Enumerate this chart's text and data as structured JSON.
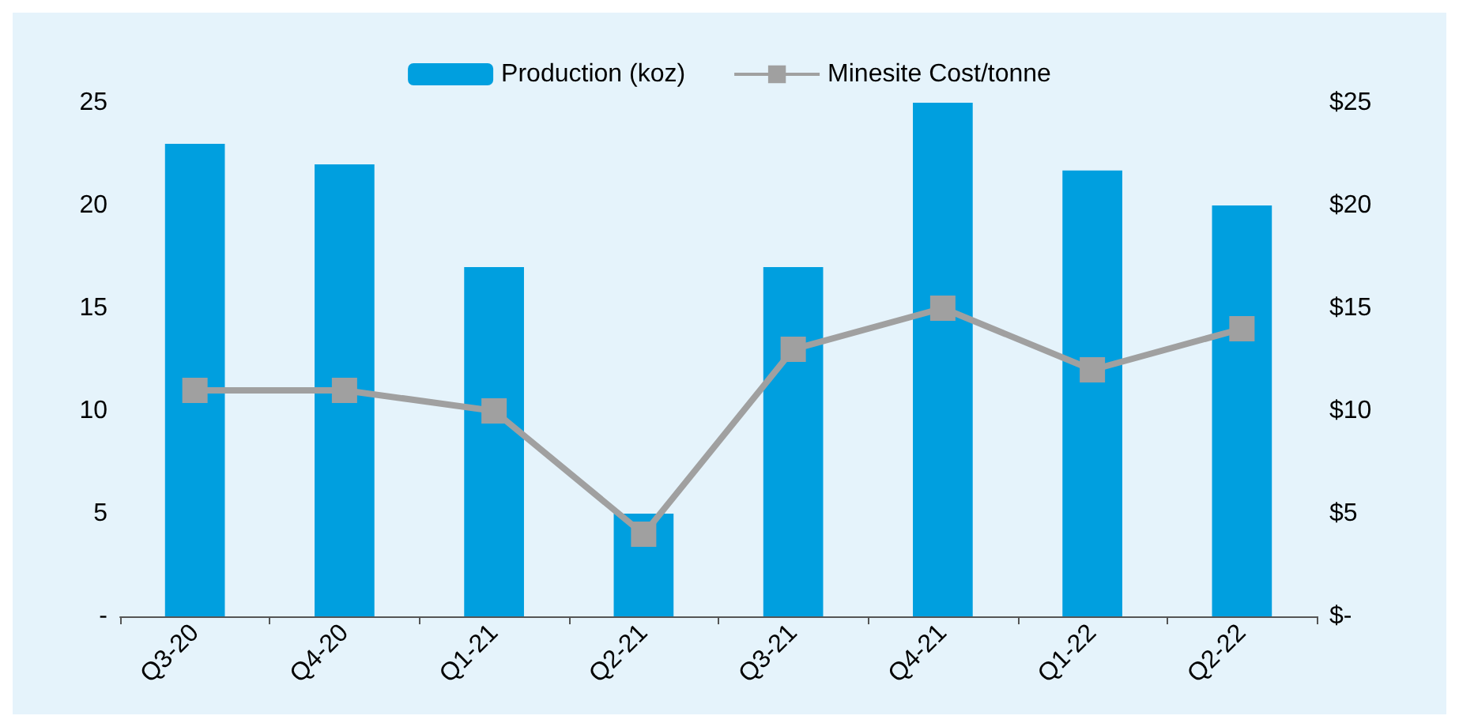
{
  "chart_data": {
    "type": "bar",
    "categories": [
      "Q3-20",
      "Q4-20",
      "Q1-21",
      "Q2-21",
      "Q3-21",
      "Q4-21",
      "Q1-22",
      "Q2-22"
    ],
    "series": [
      {
        "name": "Production (koz)",
        "color": "#009fdf",
        "values": [
          23,
          22,
          17,
          5,
          17,
          25,
          21.7,
          20
        ]
      },
      {
        "name": "Minesite Cost/tonne",
        "type": "line",
        "axis": "y2",
        "color": "#a0a0a0",
        "marker": "square",
        "values": [
          11,
          11,
          10,
          4,
          13,
          15,
          12,
          14
        ]
      }
    ],
    "ylim": [
      0,
      25
    ],
    "yticks": [
      {
        "value": 0,
        "label": "-"
      },
      5,
      10,
      15,
      20,
      25
    ],
    "y2lim": [
      0,
      25
    ],
    "y2ticks": [
      {
        "value": 0,
        "label": "$-"
      },
      {
        "value": 5,
        "label": "$5"
      },
      {
        "value": 10,
        "label": "$10"
      },
      {
        "value": 15,
        "label": "$15"
      },
      {
        "value": 20,
        "label": "$20"
      },
      {
        "value": 25,
        "label": "$25"
      }
    ],
    "grid": false,
    "legend": "top"
  }
}
